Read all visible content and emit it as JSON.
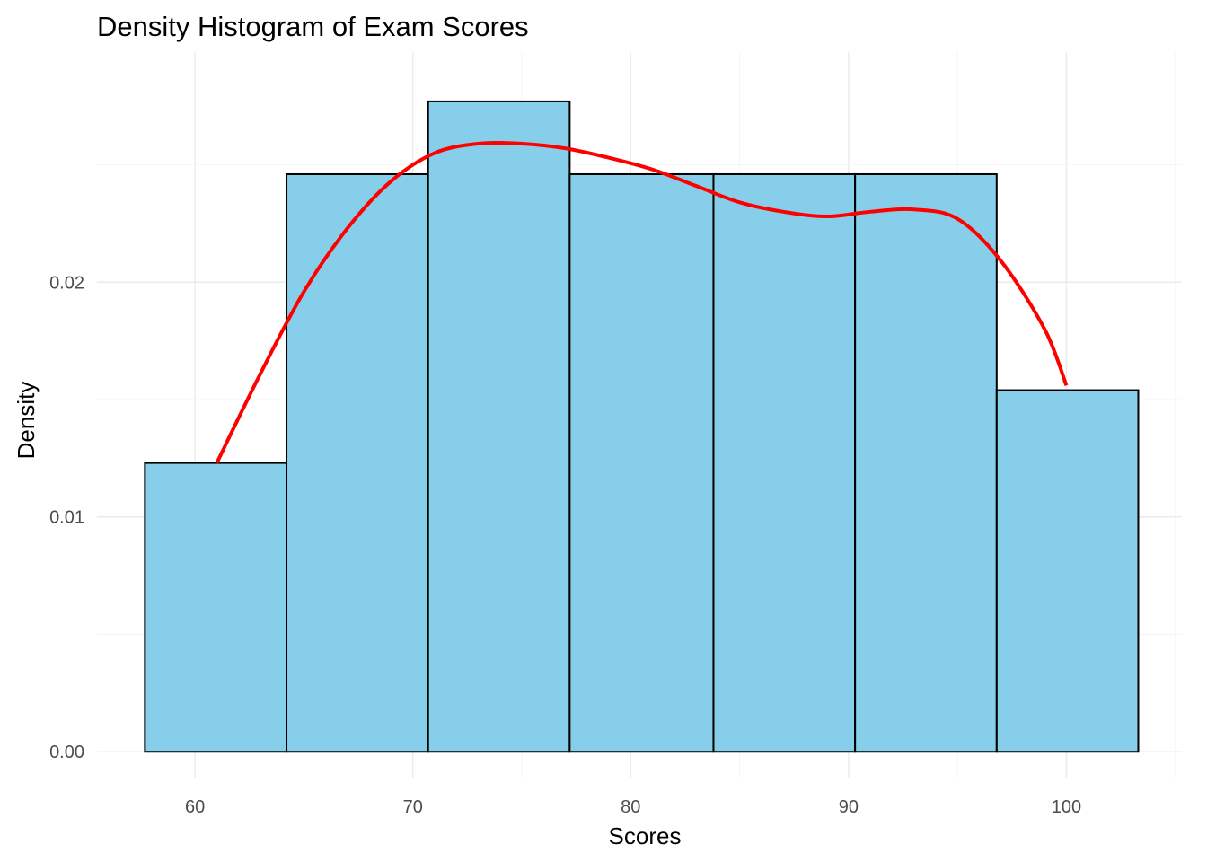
{
  "chart_data": {
    "type": "histogram",
    "title": "Density Histogram of Exam Scores",
    "xlabel": "Scores",
    "ylabel": "Density",
    "xlim": [
      55.5,
      105.3
    ],
    "ylim": [
      -0.0011,
      0.0298
    ],
    "x_ticks": [
      60,
      70,
      80,
      90,
      100
    ],
    "x_tick_labels": [
      "60",
      "70",
      "80",
      "90",
      "100"
    ],
    "y_ticks": [
      0,
      0.01,
      0.02
    ],
    "y_tick_labels": [
      "0.00",
      "0.01",
      "0.02"
    ],
    "bins": [
      {
        "x0": 57.7,
        "x1": 64.2,
        "density": 0.0123
      },
      {
        "x0": 64.2,
        "x1": 70.7,
        "density": 0.0246
      },
      {
        "x0": 70.7,
        "x1": 77.2,
        "density": 0.0277
      },
      {
        "x0": 77.2,
        "x1": 83.8,
        "density": 0.0246
      },
      {
        "x0": 83.8,
        "x1": 90.3,
        "density": 0.0246
      },
      {
        "x0": 90.3,
        "x1": 96.8,
        "density": 0.0246
      },
      {
        "x0": 96.8,
        "x1": 103.3,
        "density": 0.0154
      }
    ],
    "density_curve": {
      "x": [
        61,
        63,
        65,
        67,
        69,
        71,
        73,
        75,
        77,
        79,
        81,
        83,
        85,
        87,
        89,
        91,
        93,
        95,
        97,
        99,
        100
      ],
      "y": [
        0.0123,
        0.0161,
        0.0196,
        0.0223,
        0.0243,
        0.0255,
        0.0259,
        0.0259,
        0.0257,
        0.0253,
        0.0248,
        0.0241,
        0.0234,
        0.023,
        0.0228,
        0.023,
        0.0231,
        0.0227,
        0.0209,
        0.018,
        0.0156
      ]
    },
    "colors": {
      "bar_fill": "#87CEEB",
      "bar_border": "#000000",
      "density_line": "#FF0000"
    },
    "grid": true,
    "legend": "none"
  }
}
